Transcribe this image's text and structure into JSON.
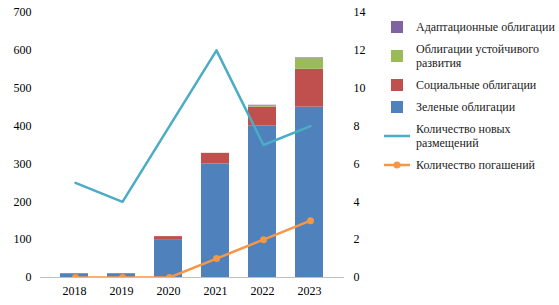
{
  "chart_data": {
    "type": "bar",
    "stacked": true,
    "legend": "right",
    "categories": [
      "2018",
      "2019",
      "2020",
      "2021",
      "2022",
      "2023"
    ],
    "ylim": [
      0,
      700
    ],
    "yticks": [
      0,
      100,
      200,
      300,
      400,
      500,
      600,
      700
    ],
    "y2lim": [
      0,
      14
    ],
    "y2ticks": [
      0,
      2,
      4,
      6,
      8,
      10,
      12,
      14
    ],
    "series": [
      {
        "name": "Зеленые облигации",
        "type": "bar",
        "color": "#4f81bd",
        "values": [
          10,
          10,
          100,
          300,
          400,
          450
        ]
      },
      {
        "name": "Социальные облигации",
        "type": "bar",
        "color": "#c0504d",
        "values": [
          0,
          0,
          8,
          28,
          50,
          100
        ]
      },
      {
        "name": "Облигации устойчивого развития",
        "type": "bar",
        "color": "#9bbb59",
        "values": [
          0,
          0,
          0,
          0,
          3,
          28
        ]
      },
      {
        "name": "Адаптационные облигации",
        "type": "bar",
        "color": "#8064a2",
        "values": [
          0,
          0,
          0,
          0,
          2,
          2
        ]
      },
      {
        "name": "Количество новых размещений",
        "type": "line",
        "axis": "y2",
        "color": "#4bacc6",
        "marker": "none",
        "line_style": "solid",
        "values": [
          5,
          4,
          8,
          12,
          7,
          8
        ]
      },
      {
        "name": "Количество погашений",
        "type": "line",
        "axis": "y2",
        "color": "#f79646",
        "marker": "circle",
        "line_style": "solid",
        "values": [
          0,
          0,
          0,
          1,
          2,
          3
        ]
      }
    ]
  }
}
